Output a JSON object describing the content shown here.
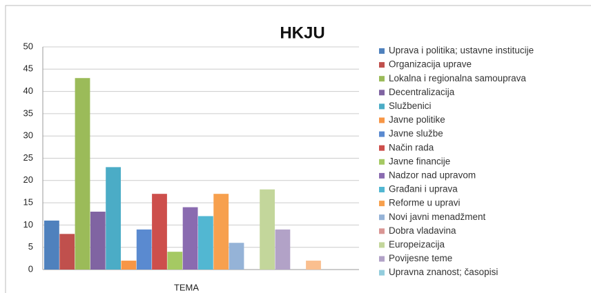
{
  "chart_data": {
    "type": "bar",
    "title": "HKJU",
    "x_label": "TEMA",
    "categories": [
      "TEMA"
    ],
    "series": [
      {
        "name": "Uprava i politika; ustavne institucije",
        "color": "#4f81bd",
        "values": [
          11
        ]
      },
      {
        "name": "Organizacija uprave",
        "color": "#c0504d",
        "values": [
          8
        ]
      },
      {
        "name": "Lokalna i regionalna samouprava",
        "color": "#9bbb59",
        "values": [
          43
        ]
      },
      {
        "name": "Decentralizacija",
        "color": "#8064a2",
        "values": [
          13
        ]
      },
      {
        "name": "Službenici",
        "color": "#4bacc6",
        "values": [
          23
        ]
      },
      {
        "name": "Javne politike",
        "color": "#f79646",
        "values": [
          2
        ]
      },
      {
        "name": "Javne službe",
        "color": "#5a8ad0",
        "values": [
          9
        ]
      },
      {
        "name": "Način rada",
        "color": "#cd4f4c",
        "values": [
          17
        ]
      },
      {
        "name": "Javne financije",
        "color": "#a5c963",
        "values": [
          4
        ]
      },
      {
        "name": "Nadzor nad upravom",
        "color": "#8a6bb0",
        "values": [
          14
        ]
      },
      {
        "name": "Građani i uprava",
        "color": "#52b7d2",
        "values": [
          12
        ]
      },
      {
        "name": "Reforme u upravi",
        "color": "#f7a04e",
        "values": [
          17
        ]
      },
      {
        "name": "Novi javni menadžment",
        "color": "#95b3d7",
        "values": [
          6
        ]
      },
      {
        "name": "Dobra vladavina",
        "color": "#d99694",
        "values": [
          0
        ]
      },
      {
        "name": "Europeizacija",
        "color": "#c3d69b",
        "values": [
          18
        ]
      },
      {
        "name": "Povijesne teme",
        "color": "#b2a2c7",
        "values": [
          9
        ]
      },
      {
        "name": "Upravna znanost; časopisi",
        "color": "#93cddd",
        "values": [
          0
        ]
      },
      {
        "color": "#fabf8f",
        "values": [
          2
        ]
      }
    ],
    "ylim": [
      0,
      50
    ],
    "yticks": [
      0,
      5,
      10,
      15,
      20,
      25,
      30,
      35,
      40,
      45,
      50
    ],
    "grid": true
  }
}
